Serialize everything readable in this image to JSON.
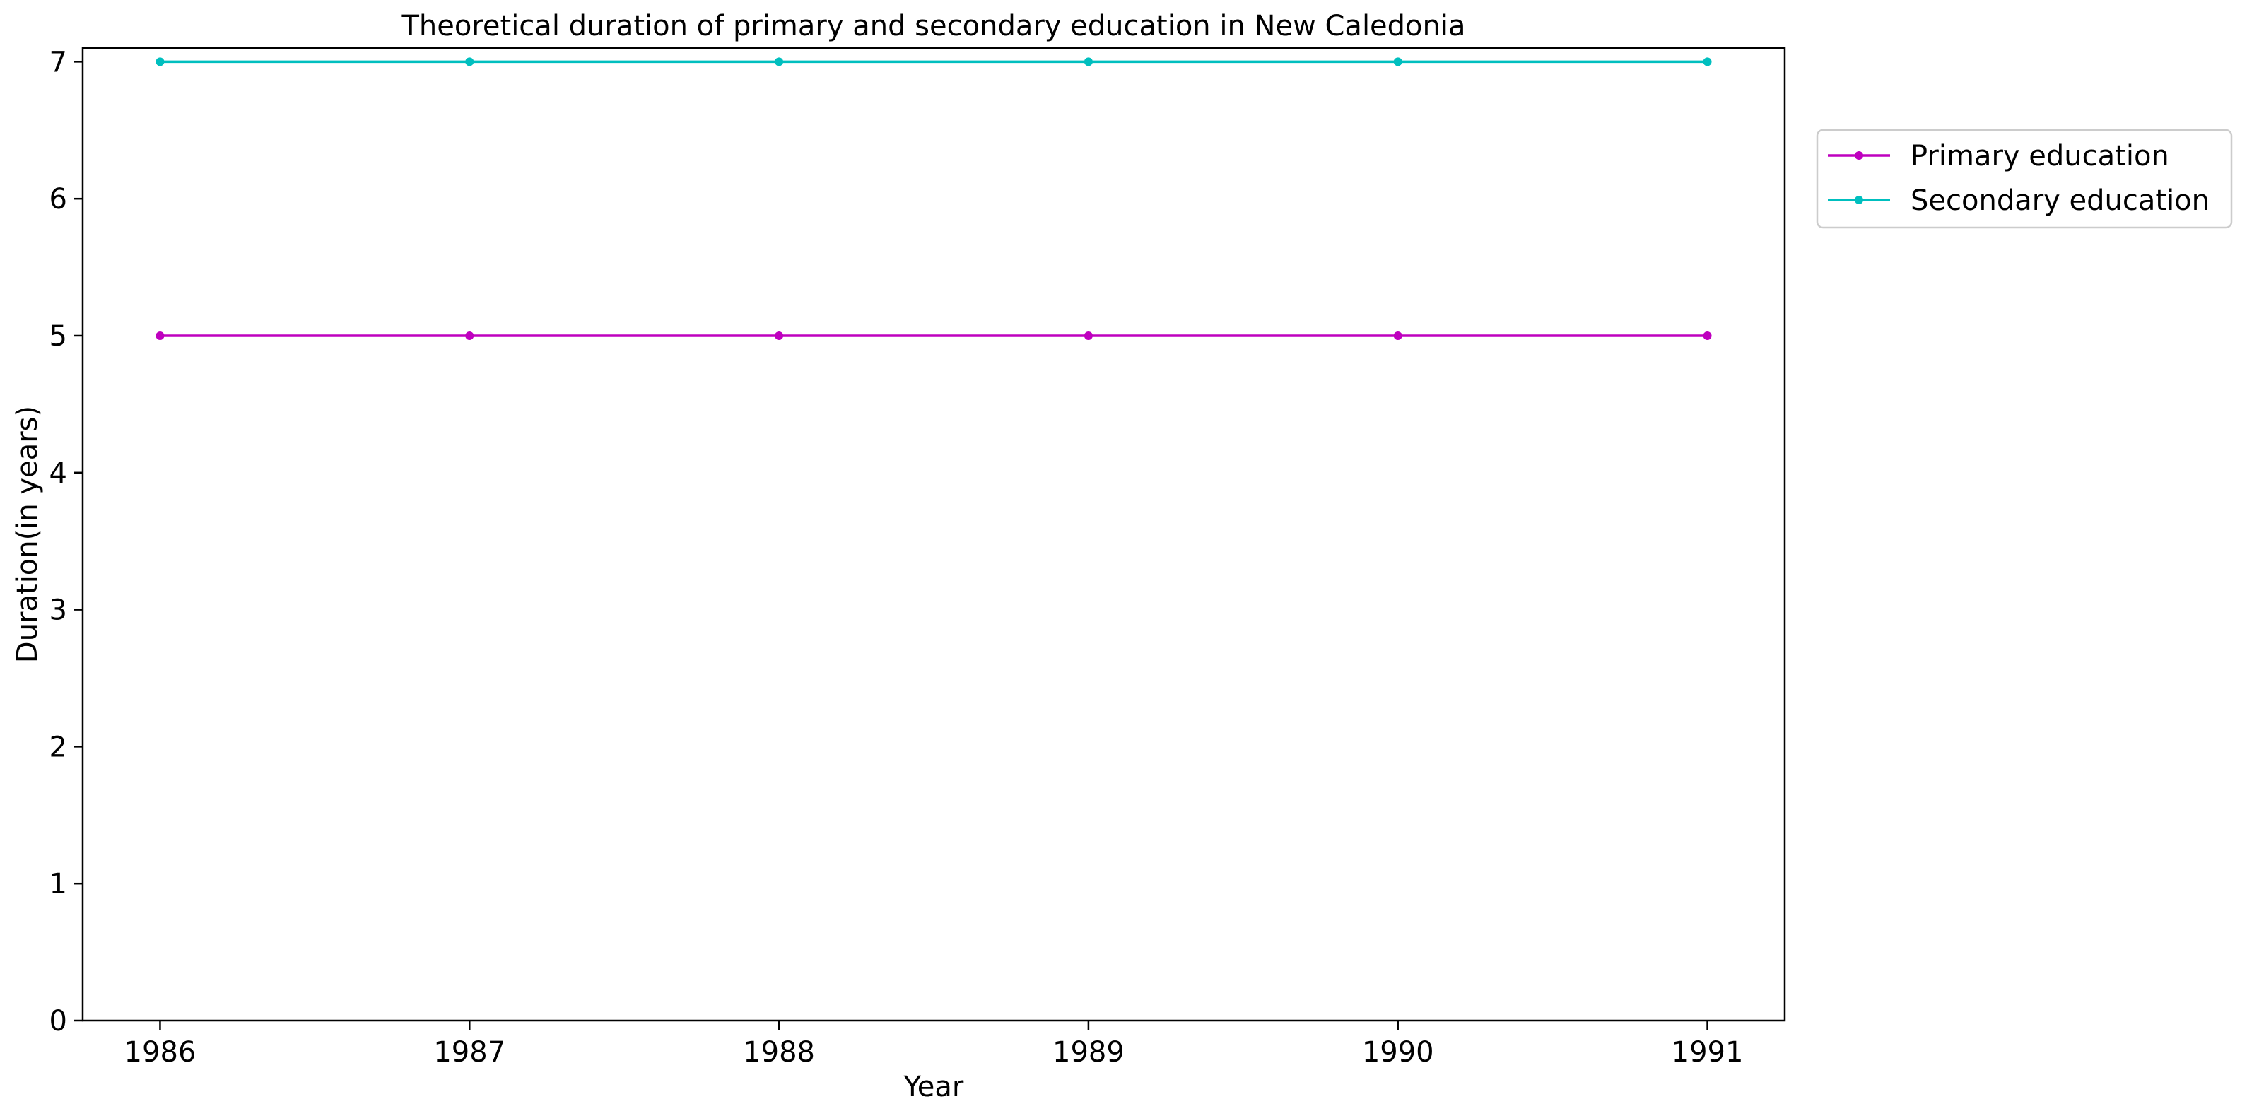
{
  "chart_data": {
    "type": "line",
    "title": "Theoretical duration of primary and secondary education in New Caledonia",
    "xlabel": "Year",
    "ylabel": "Duration(in years)",
    "categories": [
      "1986",
      "1987",
      "1988",
      "1989",
      "1990",
      "1991"
    ],
    "x": [
      1986,
      1987,
      1988,
      1989,
      1990,
      1991
    ],
    "xlim": [
      1985.75,
      1991.25
    ],
    "ylim": [
      0,
      7.1
    ],
    "yticks": [
      0,
      1,
      2,
      3,
      4,
      5,
      6,
      7
    ],
    "grid": false,
    "legend_position": "outside-upper-right",
    "series": [
      {
        "name": "Primary education",
        "color": "#BF00BF",
        "marker": "dot",
        "values": [
          5,
          5,
          5,
          5,
          5,
          5
        ]
      },
      {
        "name": "Secondary education",
        "color": "#00BFBF",
        "marker": "dot",
        "values": [
          7,
          7,
          7,
          7,
          7,
          7
        ]
      }
    ]
  }
}
